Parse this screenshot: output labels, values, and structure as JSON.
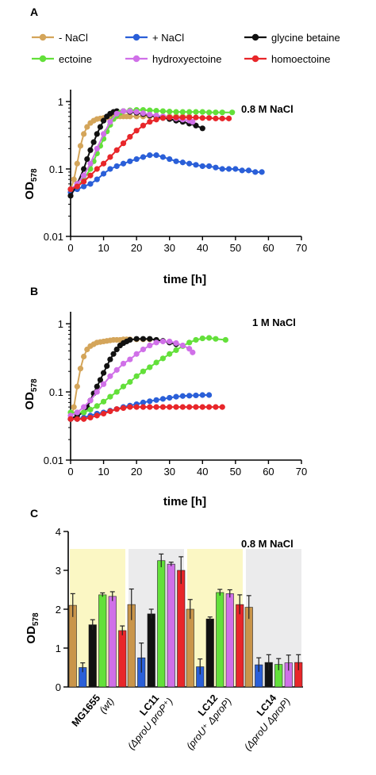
{
  "chart_data": [
    {
      "panel_label": "A",
      "type": "line",
      "annotation": "0.8 M NaCl",
      "xlabel": "time [h]",
      "ylabel": "OD",
      "ylabel_sub": "578",
      "xlim": [
        0,
        70
      ],
      "ylim": [
        0.01,
        1.5
      ],
      "yscale": "log",
      "xticks": [
        "0",
        "10",
        "20",
        "30",
        "40",
        "50",
        "60",
        "70"
      ],
      "yticks": [
        "0.01",
        "0.1",
        "1"
      ],
      "legend": [
        {
          "name": "- NaCl",
          "color": "#d4a55a"
        },
        {
          "name": "+ NaCl",
          "color": "#2a5fd8"
        },
        {
          "name": "glycine betaine",
          "color": "#111111"
        },
        {
          "name": "ectoine",
          "color": "#63e03a"
        },
        {
          "name": "hydroxyectoine",
          "color": "#d070e8"
        },
        {
          "name": "homoectoine",
          "color": "#e8262a"
        }
      ],
      "series": [
        {
          "name": "- NaCl",
          "color": "#d4a55a",
          "x": [
            0,
            1,
            2,
            3,
            4,
            5,
            6,
            7,
            8,
            9,
            10,
            11,
            12,
            13,
            14,
            15,
            16,
            17,
            18,
            20,
            22,
            24,
            26,
            28,
            30,
            32,
            34,
            36
          ],
          "y": [
            0.05,
            0.07,
            0.12,
            0.22,
            0.33,
            0.42,
            0.48,
            0.52,
            0.55,
            0.56,
            0.57,
            0.58,
            0.6,
            0.6,
            0.6,
            0.6,
            0.6,
            0.6,
            0.6,
            0.6,
            0.6,
            0.6,
            0.6,
            0.6,
            0.6,
            0.6,
            0.6,
            0.6
          ]
        },
        {
          "name": "+ NaCl",
          "color": "#2a5fd8",
          "x": [
            0,
            2,
            4,
            6,
            8,
            10,
            12,
            14,
            16,
            18,
            20,
            22,
            24,
            26,
            28,
            30,
            32,
            34,
            36,
            38,
            40,
            42,
            44,
            46,
            48,
            50,
            52,
            54,
            56,
            58
          ],
          "y": [
            0.045,
            0.05,
            0.055,
            0.06,
            0.07,
            0.085,
            0.1,
            0.11,
            0.12,
            0.13,
            0.14,
            0.15,
            0.16,
            0.16,
            0.15,
            0.14,
            0.13,
            0.125,
            0.12,
            0.115,
            0.11,
            0.11,
            0.105,
            0.1,
            0.1,
            0.1,
            0.095,
            0.095,
            0.09,
            0.09
          ]
        },
        {
          "name": "glycine betaine",
          "color": "#111111",
          "x": [
            0,
            2,
            4,
            5,
            6,
            7,
            8,
            9,
            10,
            11,
            12,
            13,
            14,
            16,
            18,
            20,
            22,
            24,
            26,
            28,
            30,
            32,
            34,
            36,
            38,
            40
          ],
          "y": [
            0.04,
            0.06,
            0.1,
            0.14,
            0.19,
            0.25,
            0.33,
            0.42,
            0.52,
            0.6,
            0.66,
            0.7,
            0.72,
            0.72,
            0.7,
            0.68,
            0.65,
            0.62,
            0.6,
            0.57,
            0.55,
            0.52,
            0.5,
            0.47,
            0.44,
            0.4
          ]
        },
        {
          "name": "ectoine",
          "color": "#63e03a",
          "x": [
            0,
            2,
            4,
            6,
            7,
            8,
            9,
            10,
            11,
            12,
            13,
            14,
            15,
            16,
            18,
            20,
            22,
            24,
            26,
            28,
            30,
            32,
            34,
            36,
            38,
            40,
            42,
            44,
            46,
            49
          ],
          "y": [
            0.05,
            0.055,
            0.07,
            0.1,
            0.13,
            0.17,
            0.22,
            0.28,
            0.36,
            0.45,
            0.55,
            0.62,
            0.68,
            0.72,
            0.74,
            0.75,
            0.75,
            0.74,
            0.73,
            0.72,
            0.71,
            0.7,
            0.7,
            0.7,
            0.7,
            0.7,
            0.69,
            0.69,
            0.69,
            0.69
          ]
        },
        {
          "name": "hydroxyectoine",
          "color": "#d070e8",
          "x": [
            0,
            2,
            4,
            6,
            8,
            10,
            12,
            14,
            16,
            18,
            20,
            22,
            24,
            26,
            28,
            30,
            32,
            34,
            36,
            37
          ],
          "y": [
            0.05,
            0.06,
            0.08,
            0.12,
            0.2,
            0.33,
            0.5,
            0.66,
            0.72,
            0.72,
            0.7,
            0.67,
            0.64,
            0.62,
            0.6,
            0.58,
            0.56,
            0.54,
            0.52,
            0.5
          ]
        },
        {
          "name": "homoectoine",
          "color": "#e8262a",
          "x": [
            0,
            2,
            4,
            6,
            8,
            10,
            12,
            14,
            16,
            18,
            20,
            22,
            24,
            26,
            28,
            30,
            32,
            34,
            36,
            38,
            40,
            42,
            44,
            46,
            48
          ],
          "y": [
            0.05,
            0.055,
            0.065,
            0.08,
            0.1,
            0.12,
            0.15,
            0.19,
            0.24,
            0.3,
            0.37,
            0.44,
            0.5,
            0.54,
            0.57,
            0.58,
            0.58,
            0.58,
            0.58,
            0.58,
            0.57,
            0.57,
            0.56,
            0.56,
            0.56
          ]
        }
      ]
    },
    {
      "panel_label": "B",
      "type": "line",
      "annotation": "1 M NaCl",
      "xlabel": "time [h]",
      "ylabel": "OD",
      "ylabel_sub": "578",
      "xlim": [
        0,
        70
      ],
      "ylim": [
        0.01,
        1.5
      ],
      "yscale": "log",
      "xticks": [
        "0",
        "10",
        "20",
        "30",
        "40",
        "50",
        "60",
        "70"
      ],
      "yticks": [
        "0.01",
        "0.1",
        "1"
      ],
      "series": [
        {
          "name": "- NaCl",
          "color": "#d4a55a",
          "x": [
            0,
            1,
            2,
            3,
            4,
            5,
            6,
            7,
            8,
            9,
            10,
            11,
            12,
            13,
            14,
            15,
            16,
            17,
            18,
            20,
            22,
            24
          ],
          "y": [
            0.04,
            0.06,
            0.12,
            0.22,
            0.33,
            0.42,
            0.47,
            0.5,
            0.53,
            0.54,
            0.55,
            0.56,
            0.57,
            0.58,
            0.58,
            0.58,
            0.59,
            0.59,
            0.59,
            0.59,
            0.59,
            0.59
          ]
        },
        {
          "name": "+ NaCl",
          "color": "#2a5fd8",
          "x": [
            0,
            2,
            4,
            6,
            8,
            10,
            12,
            14,
            16,
            18,
            20,
            22,
            24,
            26,
            28,
            30,
            32,
            34,
            36,
            38,
            40,
            42
          ],
          "y": [
            0.04,
            0.04,
            0.042,
            0.045,
            0.048,
            0.05,
            0.053,
            0.056,
            0.06,
            0.063,
            0.066,
            0.07,
            0.073,
            0.076,
            0.079,
            0.082,
            0.085,
            0.087,
            0.088,
            0.089,
            0.09,
            0.09
          ]
        },
        {
          "name": "glycine betaine",
          "color": "#111111",
          "x": [
            0,
            2,
            4,
            5,
            6,
            7,
            8,
            9,
            10,
            11,
            12,
            13,
            14,
            15,
            16,
            17,
            18,
            20,
            22,
            24,
            26,
            28,
            30,
            32
          ],
          "y": [
            0.04,
            0.045,
            0.05,
            0.06,
            0.075,
            0.095,
            0.12,
            0.15,
            0.19,
            0.24,
            0.3,
            0.36,
            0.42,
            0.48,
            0.52,
            0.55,
            0.58,
            0.6,
            0.6,
            0.6,
            0.58,
            0.56,
            0.53,
            0.5
          ]
        },
        {
          "name": "ectoine",
          "color": "#63e03a",
          "x": [
            0,
            2,
            4,
            6,
            8,
            10,
            12,
            14,
            16,
            18,
            20,
            22,
            24,
            26,
            28,
            30,
            32,
            34,
            36,
            38,
            40,
            42,
            44,
            47
          ],
          "y": [
            0.05,
            0.05,
            0.05,
            0.055,
            0.062,
            0.072,
            0.085,
            0.1,
            0.12,
            0.14,
            0.17,
            0.2,
            0.23,
            0.27,
            0.31,
            0.36,
            0.41,
            0.47,
            0.53,
            0.58,
            0.61,
            0.62,
            0.6,
            0.58
          ]
        },
        {
          "name": "hydroxyectoine",
          "color": "#d070e8",
          "x": [
            0,
            2,
            4,
            6,
            8,
            10,
            12,
            14,
            16,
            18,
            20,
            22,
            24,
            26,
            28,
            30,
            32,
            34,
            36,
            37
          ],
          "y": [
            0.045,
            0.05,
            0.06,
            0.075,
            0.1,
            0.13,
            0.17,
            0.21,
            0.26,
            0.3,
            0.36,
            0.42,
            0.48,
            0.53,
            0.55,
            0.55,
            0.52,
            0.48,
            0.43,
            0.38
          ]
        },
        {
          "name": "homoectoine",
          "color": "#e8262a",
          "x": [
            0,
            2,
            4,
            6,
            8,
            10,
            12,
            14,
            16,
            18,
            20,
            22,
            24,
            26,
            28,
            30,
            32,
            34,
            36,
            38,
            40,
            42,
            44,
            46
          ],
          "y": [
            0.04,
            0.04,
            0.04,
            0.042,
            0.045,
            0.048,
            0.052,
            0.056,
            0.058,
            0.06,
            0.06,
            0.06,
            0.06,
            0.06,
            0.06,
            0.06,
            0.06,
            0.06,
            0.06,
            0.06,
            0.06,
            0.06,
            0.06,
            0.06
          ]
        }
      ]
    },
    {
      "panel_label": "C",
      "type": "bar",
      "annotation": "0.8 M NaCl",
      "ylabel": "OD",
      "ylabel_sub": "578",
      "ylim": [
        0,
        4
      ],
      "yticks": [
        "0",
        "1",
        "2",
        "3",
        "4"
      ],
      "groups": [
        {
          "line1": "MG1655",
          "line2": "(wt)",
          "shade": "#fbf7c4",
          "values": [
            2.1,
            0.5,
            1.6,
            2.37,
            2.33,
            1.45
          ],
          "errors": [
            0.3,
            0.12,
            0.13,
            0.05,
            0.12,
            0.12
          ]
        },
        {
          "line1": "LC11",
          "line2": "(ΔproU proP⁺)",
          "shade": "#ebebec",
          "values": [
            2.12,
            0.75,
            1.88,
            3.25,
            3.16,
            3.0
          ],
          "errors": [
            0.4,
            0.38,
            0.12,
            0.17,
            0.05,
            0.35
          ]
        },
        {
          "line1": "LC12",
          "line2": "(proU⁺ ΔproP)",
          "shade": "#fbf7c4",
          "values": [
            2.0,
            0.52,
            1.75,
            2.43,
            2.4,
            2.12
          ],
          "errors": [
            0.25,
            0.2,
            0.05,
            0.08,
            0.1,
            0.25
          ]
        },
        {
          "line1": "LC14",
          "line2": "(ΔproU ΔproP)",
          "shade": "#ebebec",
          "values": [
            2.05,
            0.57,
            0.63,
            0.58,
            0.62,
            0.63
          ],
          "errors": [
            0.3,
            0.18,
            0.2,
            0.15,
            0.2,
            0.2
          ]
        }
      ],
      "series_colors": [
        "#c9954a",
        "#2a5fd8",
        "#111111",
        "#63e03a",
        "#d070e8",
        "#e8262a"
      ]
    }
  ]
}
